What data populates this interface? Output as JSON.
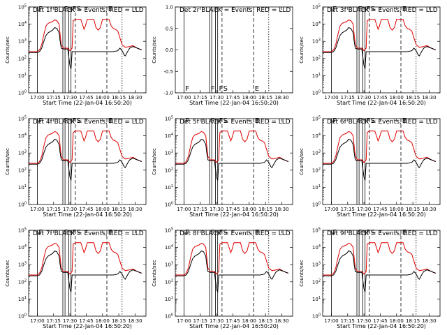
{
  "chart_data": {
    "type": "line",
    "x_ticks": [
      "17:00",
      "17:15",
      "17:30",
      "17:45",
      "18:00",
      "18:15",
      "18:30"
    ],
    "x_tick_minutes": [
      0,
      15,
      30,
      45,
      60,
      75,
      90
    ],
    "x_range_minutes": [
      -8,
      100
    ],
    "start_time_minutes": 0,
    "y_scale": "log",
    "y_range": [
      1,
      100000
    ],
    "y_tick_exponents": [
      0,
      1,
      2,
      3,
      4,
      5
    ],
    "zero_y_range": [
      -1,
      1
    ],
    "zero_y_ticks": [
      "-1.0",
      "-0.5",
      "0.0",
      "0.5",
      "1.0"
    ],
    "xlabel": "Start Time (22-Jan-04 16:50:20)",
    "ylabel": "Counts/sec",
    "colors": {
      "events": "#000000",
      "lld": "#e00000"
    },
    "markers": {
      "solid": [
        0,
        23.5,
        25.5,
        29,
        31
      ],
      "dashed": [
        35,
        64
      ],
      "dotted": [
        78
      ]
    },
    "marker_flags": [
      {
        "label": "F",
        "x": 0.5
      },
      {
        "label": "F",
        "x": 24
      },
      {
        "label": "F",
        "x": 31.5
      },
      {
        "label": "S",
        "x": 35.5
      },
      {
        "label": "E",
        "x": 64.5
      }
    ],
    "lld_series": [
      [
        -8,
        2.4
      ],
      [
        0,
        2.4
      ],
      [
        2,
        2.5
      ],
      [
        4,
        2.8
      ],
      [
        6,
        3.4
      ],
      [
        8,
        3.9
      ],
      [
        10,
        4.05
      ],
      [
        14,
        4.15
      ],
      [
        16,
        4.25
      ],
      [
        18,
        4.2
      ],
      [
        20,
        4.0
      ],
      [
        21,
        3.4
      ],
      [
        22,
        2.8
      ],
      [
        24,
        2.6
      ],
      [
        28,
        2.6
      ],
      [
        30,
        2.45
      ],
      [
        32,
        2.6
      ],
      [
        33,
        4.2
      ],
      [
        35,
        4.28
      ],
      [
        40,
        4.28
      ],
      [
        42,
        3.9
      ],
      [
        43,
        3.7
      ],
      [
        44,
        3.85
      ],
      [
        46,
        4.28
      ],
      [
        52,
        4.28
      ],
      [
        54,
        3.8
      ],
      [
        56,
        3.65
      ],
      [
        58,
        3.8
      ],
      [
        60,
        4.28
      ],
      [
        66,
        4.28
      ],
      [
        68,
        3.9
      ],
      [
        70,
        3.75
      ],
      [
        72,
        3.7
      ],
      [
        74,
        3.6
      ],
      [
        76,
        3.2
      ],
      [
        78,
        2.8
      ],
      [
        81,
        2.65
      ],
      [
        85,
        2.7
      ],
      [
        88,
        2.75
      ],
      [
        92,
        2.6
      ],
      [
        96,
        2.5
      ]
    ],
    "events_series": [
      [
        -8,
        2.35
      ],
      [
        0,
        2.35
      ],
      [
        2,
        2.4
      ],
      [
        4,
        2.6
      ],
      [
        6,
        3.0
      ],
      [
        8,
        3.35
      ],
      [
        10,
        3.5
      ],
      [
        14,
        3.65
      ],
      [
        16,
        3.8
      ],
      [
        18,
        3.75
      ],
      [
        20,
        3.5
      ],
      [
        21,
        3.0
      ],
      [
        22,
        2.6
      ],
      [
        24,
        2.55
      ],
      [
        28,
        2.55
      ],
      [
        30,
        1.6
      ],
      [
        31,
        1.4
      ],
      [
        32,
        2.4
      ],
      [
        33,
        2.4
      ],
      [
        35,
        2.4
      ],
      [
        40,
        2.4
      ],
      [
        46,
        2.4
      ],
      [
        52,
        2.4
      ],
      [
        60,
        2.4
      ],
      [
        66,
        2.4
      ],
      [
        70,
        2.4
      ],
      [
        74,
        2.45
      ],
      [
        76,
        2.6
      ],
      [
        78,
        2.45
      ],
      [
        80,
        2.2
      ],
      [
        81,
        2.15
      ],
      [
        83,
        2.4
      ],
      [
        85,
        2.6
      ],
      [
        88,
        2.7
      ],
      [
        92,
        2.6
      ],
      [
        96,
        2.5
      ]
    ],
    "panels": [
      {
        "id": "det1f",
        "title": "Det 1f BLACK = Events, RED = LLD",
        "has_data": true,
        "ylabel": "Counts/sec"
      },
      {
        "id": "det2r",
        "title": "Det 2r BLACK = Events, RED = LLD",
        "has_data": false,
        "ylabel": "Counts/sec"
      },
      {
        "id": "det3f",
        "title": "Det 3f BLACK = Events, RED = LLD",
        "has_data": true,
        "ylabel": "Counts/sec"
      },
      {
        "id": "det4f",
        "title": "Det 4f BLACK = Events, RED = LLD",
        "has_data": true,
        "ylabel": "Counts/sec"
      },
      {
        "id": "det5f",
        "title": "Det 5f BLACK = Events, RED = LLD",
        "has_data": true,
        "ylabel": "Counts/sec"
      },
      {
        "id": "det6f",
        "title": "Det 6f BLACK = Events, RED = LLD",
        "has_data": true,
        "ylabel": "Counts/sec"
      },
      {
        "id": "det7f",
        "title": "Det 7f BLACK = Events, RED = LLD",
        "has_data": true,
        "ylabel": "Counts/sec"
      },
      {
        "id": "det8f",
        "title": "Det 8f BLACK = Events, RED = LLD",
        "has_data": true,
        "ylabel": "Counts/sec"
      },
      {
        "id": "det9f",
        "title": "Det 9f BLACK = Events, RED = LLD",
        "has_data": true,
        "ylabel": "Counts/sec"
      }
    ]
  }
}
